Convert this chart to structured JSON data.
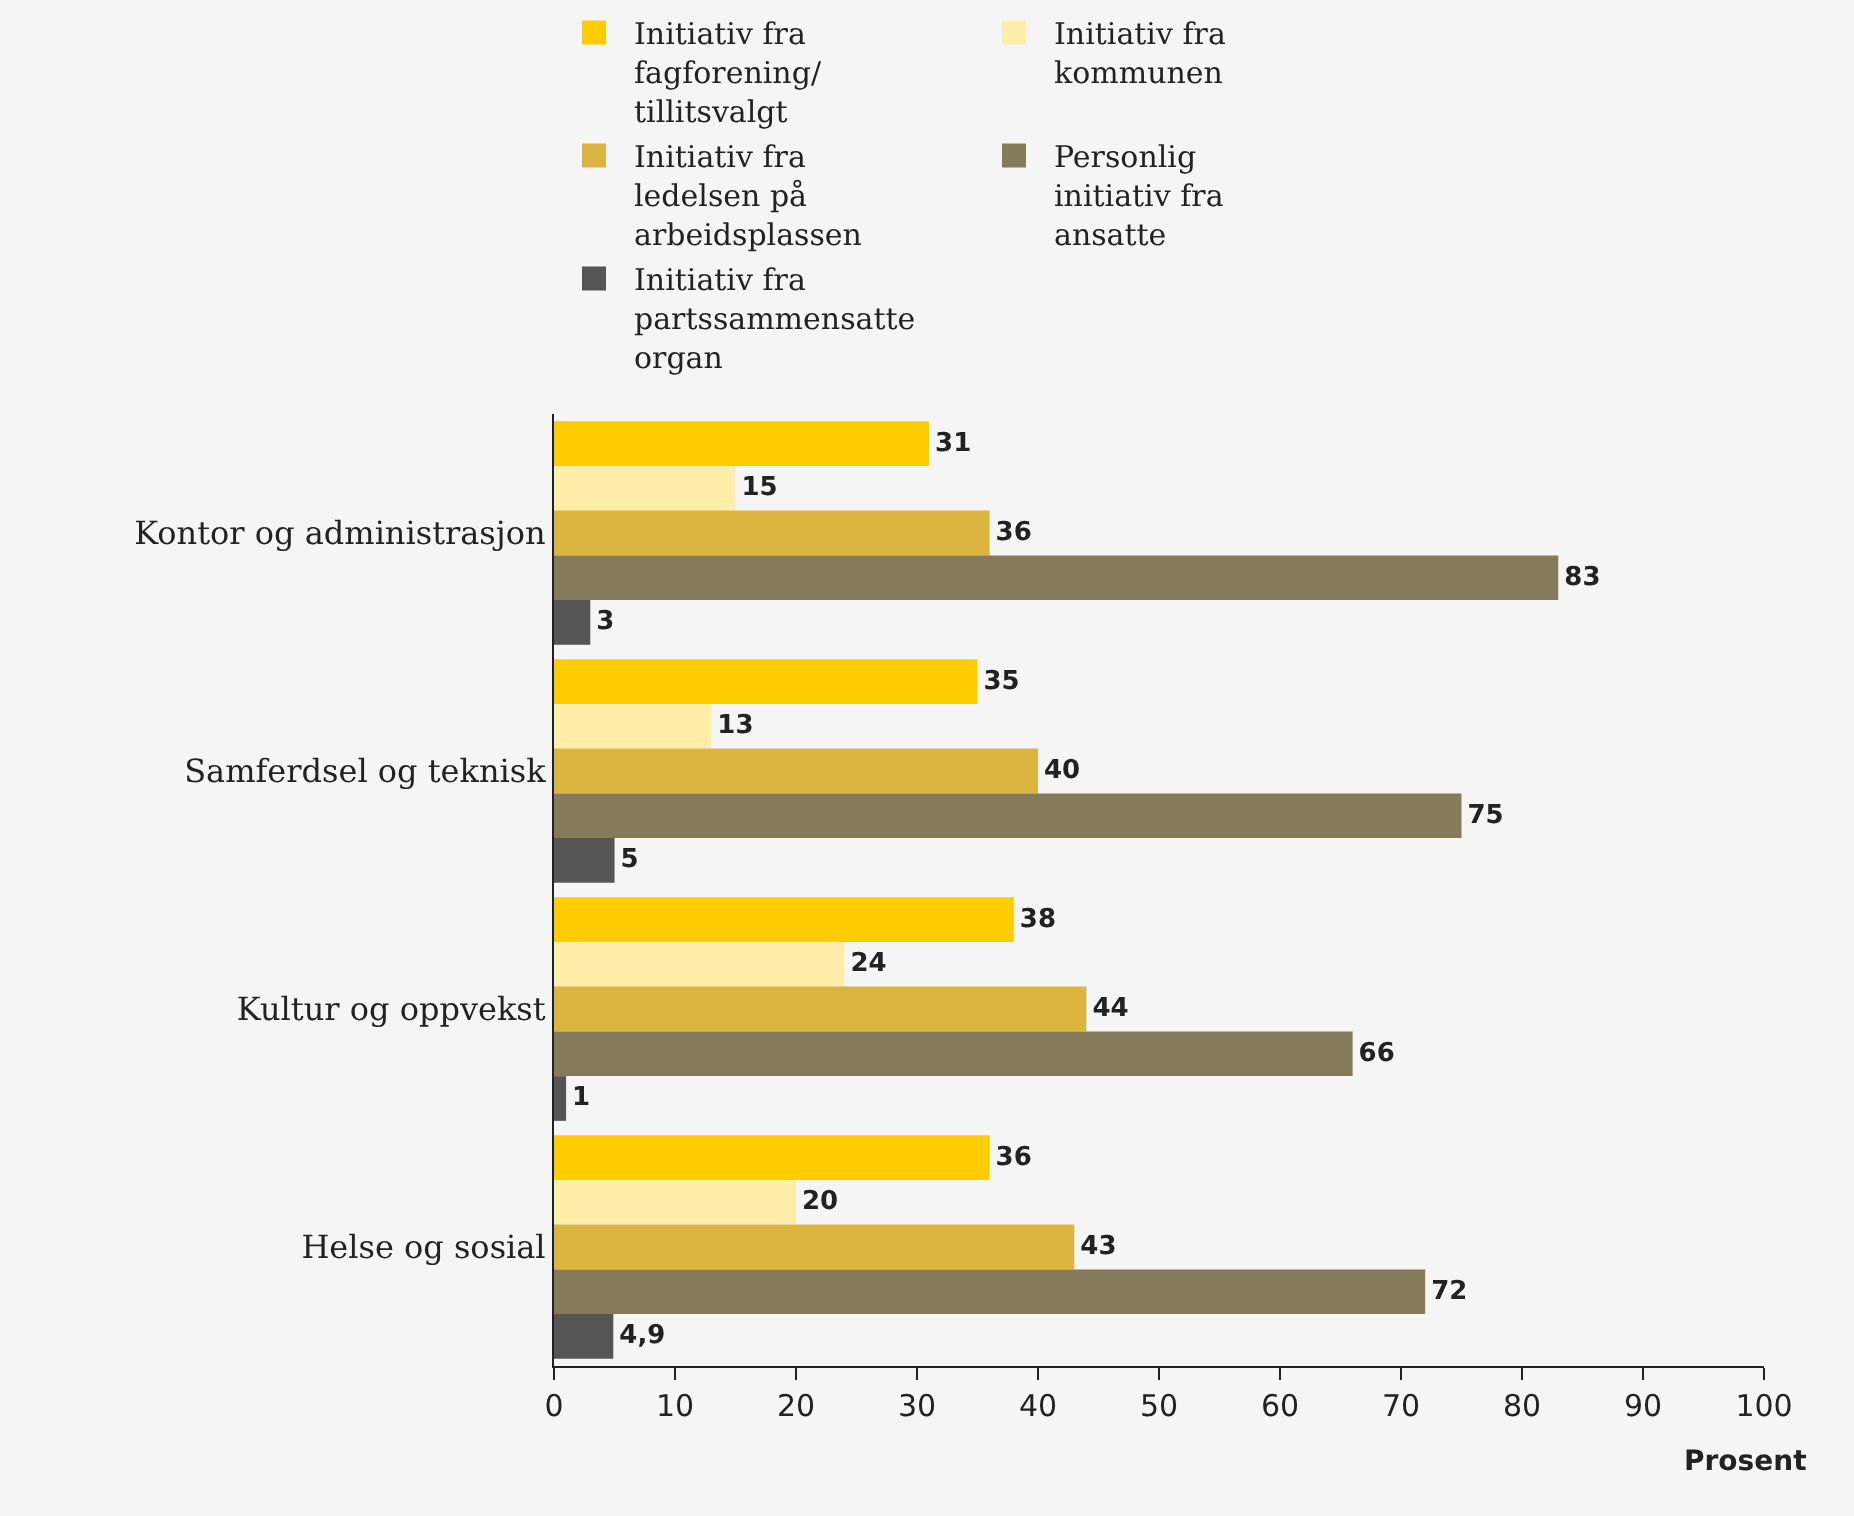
{
  "chart_data": {
    "type": "bar",
    "orientation": "horizontal",
    "xlabel": "Prosent",
    "categories": [
      "Kontor og administrasjon",
      "Samferdsel og teknisk",
      "Kultur og oppvekst",
      "Helse og sosial"
    ],
    "series": [
      {
        "name": "Initiativ fra\nfagforening/\ntillitsvalgt",
        "color": "#ffcc00",
        "values": [
          31,
          35,
          38,
          36
        ],
        "value_labels": [
          "31",
          "35",
          "38",
          "36"
        ]
      },
      {
        "name": "Initiativ fra\nkommunen",
        "color": "#feeeaa",
        "values": [
          15,
          13,
          24,
          20
        ],
        "value_labels": [
          "15",
          "13",
          "24",
          "20"
        ]
      },
      {
        "name": "Initiativ fra\nledelsen på\narbeidsplassen",
        "color": "#dbb540",
        "values": [
          36,
          40,
          44,
          43
        ],
        "value_labels": [
          "36",
          "40",
          "44",
          "43"
        ]
      },
      {
        "name": "Personlig\ninitiativ fra\nansatte",
        "color": "#857b5b",
        "values": [
          83,
          75,
          66,
          72
        ],
        "value_labels": [
          "83",
          "75",
          "66",
          "72"
        ]
      },
      {
        "name": "Initiativ fra\npartssammensatte\norgan",
        "color": "#555555",
        "values": [
          3,
          5,
          1,
          4.9
        ],
        "value_labels": [
          "3",
          "5",
          "1",
          "4,9"
        ]
      }
    ],
    "xlim": [
      0,
      100
    ],
    "xticks": [
      0,
      10,
      20,
      30,
      40,
      50,
      60,
      70,
      80,
      90,
      100
    ],
    "grid": false,
    "legend": "top"
  }
}
